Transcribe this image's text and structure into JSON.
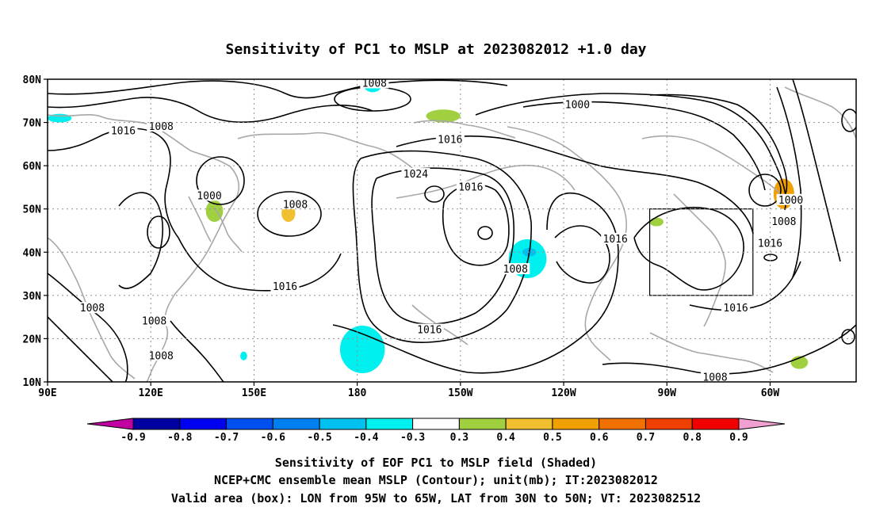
{
  "title": "Sensitivity of PC1 to MSLP at 2023082012 +1.0 day",
  "chart_data": {
    "type": "heatmap",
    "lat_labels": [
      "80N",
      "70N",
      "60N",
      "50N",
      "40N",
      "30N",
      "20N",
      "10N"
    ],
    "lon_labels": [
      "90E",
      "120E",
      "150E",
      "180",
      "150W",
      "120W",
      "90W",
      "60W"
    ],
    "lon_range_deg_east": [
      90,
      325
    ],
    "lat_range_deg": [
      10,
      80
    ],
    "grid": "dotted",
    "contour_variable": "MSLP (mb)",
    "contour_labels": [
      {
        "text": "1008",
        "lon": 185,
        "lat": 79
      },
      {
        "text": "1016",
        "lon": 112,
        "lat": 68
      },
      {
        "text": "1008",
        "lon": 123,
        "lat": 69
      },
      {
        "text": "1000",
        "lon": 244,
        "lat": 74
      },
      {
        "text": "1016",
        "lon": 207,
        "lat": 66
      },
      {
        "text": "1000",
        "lon": 137,
        "lat": 53
      },
      {
        "text": "1008",
        "lon": 162,
        "lat": 51
      },
      {
        "text": "1024",
        "lon": 197,
        "lat": 58
      },
      {
        "text": "1016",
        "lon": 213,
        "lat": 55
      },
      {
        "text": "1000",
        "lon": 306,
        "lat": 52
      },
      {
        "text": "1008",
        "lon": 304,
        "lat": 47
      },
      {
        "text": "1016",
        "lon": 255,
        "lat": 43
      },
      {
        "text": "1016",
        "lon": 300,
        "lat": 42
      },
      {
        "text": "1008",
        "lon": 226,
        "lat": 36
      },
      {
        "text": "1016",
        "lon": 159,
        "lat": 32
      },
      {
        "text": "1008",
        "lon": 103,
        "lat": 27
      },
      {
        "text": "1008",
        "lon": 121,
        "lat": 24
      },
      {
        "text": "1016",
        "lon": 201,
        "lat": 22
      },
      {
        "text": "1016",
        "lon": 290,
        "lat": 27
      },
      {
        "text": "1008",
        "lon": 123,
        "lat": 16
      },
      {
        "text": "1008",
        "lon": 284,
        "lat": 11
      }
    ],
    "shaded_regions": [
      {
        "level": "-0.3 to -0.4",
        "color": "#00f0f0",
        "lon": [
          182,
          187
        ],
        "lat": [
          77,
          80
        ]
      },
      {
        "level": "-0.3 to -0.4",
        "color": "#00f0f0",
        "lon": [
          90,
          97
        ],
        "lat": [
          70,
          72
        ]
      },
      {
        "level": "-0.3 to -0.4",
        "color": "#00f0f0",
        "lon": [
          224,
          235
        ],
        "lat": [
          34,
          43
        ]
      },
      {
        "level": "-0.4 to -0.5",
        "color": "#00c0f0",
        "lon": [
          228,
          232
        ],
        "lat": [
          39,
          41
        ]
      },
      {
        "level": "-0.3 to -0.4",
        "color": "#00f0f0",
        "lon": [
          175,
          188
        ],
        "lat": [
          12,
          23
        ]
      },
      {
        "level": "-0.3 to -0.4",
        "color": "#00f0f0",
        "lon": [
          146,
          148
        ],
        "lat": [
          15,
          17
        ]
      },
      {
        "level": "0.3 to 0.4",
        "color": "#a0d040",
        "lon": [
          200,
          210
        ],
        "lat": [
          70,
          73
        ]
      },
      {
        "level": "0.3 to 0.4",
        "color": "#a0d040",
        "lon": [
          136,
          141
        ],
        "lat": [
          47,
          52
        ]
      },
      {
        "level": "0.3 to 0.5",
        "color": "#f0c030",
        "lon": [
          158,
          162
        ],
        "lat": [
          47,
          51
        ]
      },
      {
        "level": "0.3 to 0.6",
        "color": "#f0a000",
        "lon": [
          301,
          307
        ],
        "lat": [
          50,
          57
        ]
      },
      {
        "level": "0.3 to 0.4",
        "color": "#a0d040",
        "lon": [
          265,
          269
        ],
        "lat": [
          46,
          48
        ]
      },
      {
        "level": "0.3 to 0.4",
        "color": "#a0d040",
        "lon": [
          306,
          311
        ],
        "lat": [
          13,
          16
        ]
      }
    ],
    "valid_area_box": {
      "lon": [
        265,
        295
      ],
      "lat": [
        30,
        50
      ]
    }
  },
  "colorbar": {
    "labels": [
      "-0.9",
      "-0.8",
      "-0.7",
      "-0.6",
      "-0.5",
      "-0.4",
      "-0.3",
      "0.3",
      "0.4",
      "0.5",
      "0.6",
      "0.7",
      "0.8",
      "0.9"
    ],
    "colors": [
      "#0000a0",
      "#0000f0",
      "#0050f0",
      "#0080f0",
      "#00c0f0",
      "#00f0f0",
      "#ffffff",
      "#a0d040",
      "#f0c030",
      "#f0a000",
      "#f07000",
      "#f04000",
      "#f00000"
    ],
    "low_end_color": "#c000a0",
    "high_end_color": "#f0a0d0"
  },
  "caption": {
    "line1": "Sensitivity of EOF PC1 to MSLP field (Shaded)",
    "line2": "NCEP+CMC ensemble mean MSLP (Contour); unit(mb); IT:2023082012",
    "line3": "Valid area (box): LON from 95W to 65W, LAT from 30N to 50N; VT: 2023082512"
  }
}
